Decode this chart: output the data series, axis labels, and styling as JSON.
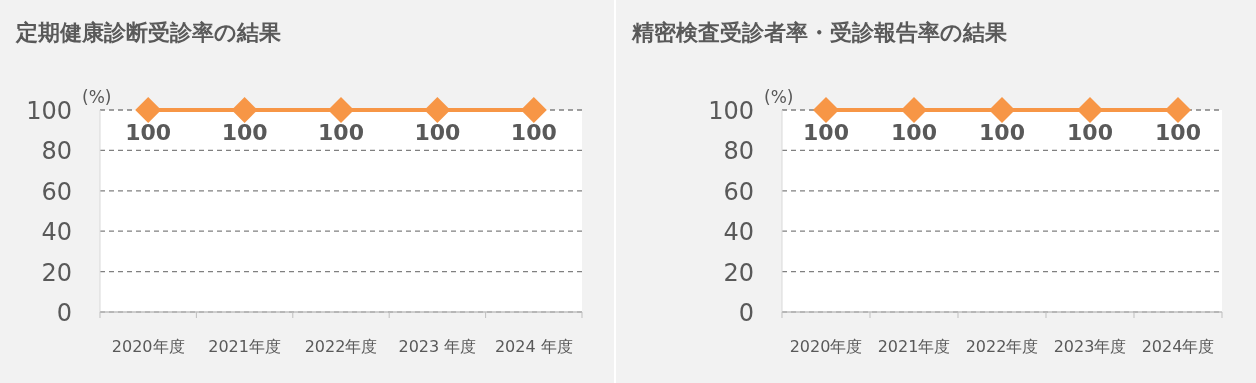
{
  "chart_data": [
    {
      "type": "line",
      "title": "定期健康診断受診率の結果",
      "ylabel": "(%)",
      "categories": [
        "2020年度",
        "2021年度",
        "2022年度",
        "2023 年度",
        "2024 年度"
      ],
      "series": [
        {
          "color": "#f79646",
          "values": [
            100,
            100,
            100,
            100,
            100
          ]
        }
      ],
      "ylim": [
        0,
        100
      ],
      "yticks": [
        0,
        20,
        40,
        60,
        80,
        100
      ],
      "grid": "y",
      "marker": "diamond",
      "line_style": "solid",
      "data_labels": true
    },
    {
      "type": "line",
      "title": "精密検査受診者率・受診報告率の結果",
      "ylabel": "(%)",
      "categories": [
        "2020年度",
        "2021年度",
        "2022年度",
        "2023年度",
        "2024年度"
      ],
      "series": [
        {
          "color": "#f79646",
          "values": [
            100,
            100,
            100,
            100,
            100
          ]
        }
      ],
      "ylim": [
        0,
        100
      ],
      "yticks": [
        0,
        20,
        40,
        60,
        80,
        100
      ],
      "grid": "y",
      "marker": "diamond",
      "line_style": "solid",
      "data_labels": true
    }
  ]
}
